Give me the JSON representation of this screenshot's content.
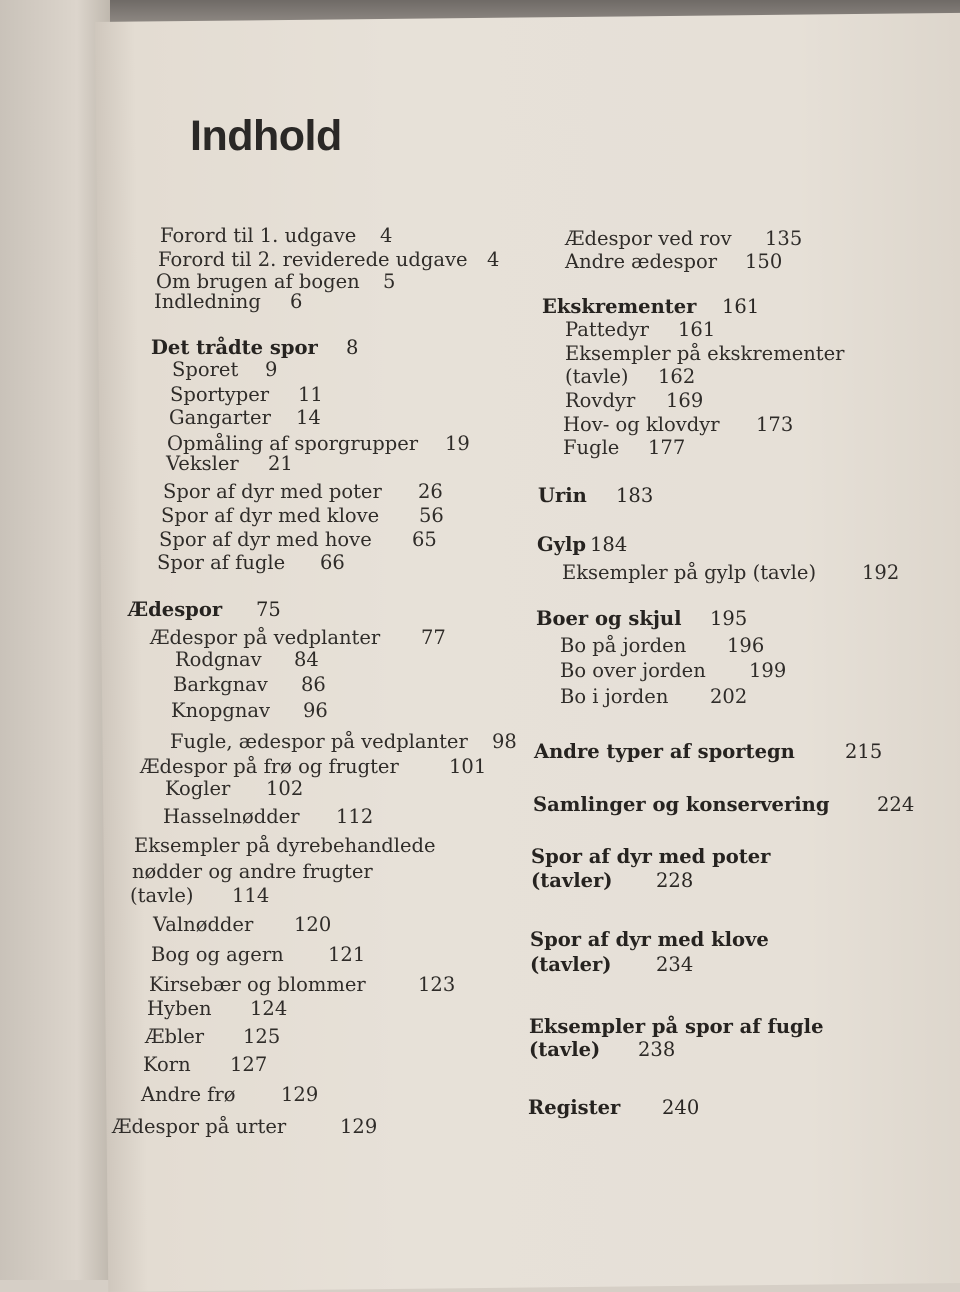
{
  "page_title": "Indhold",
  "left_column": [
    {
      "text": "Forord til 1. udgave",
      "page": "4",
      "bold": false
    },
    {
      "text": "Forord til 2. reviderede udgave",
      "page": "4",
      "bold": false
    },
    {
      "text": "Om brugen af bogen",
      "page": "5",
      "bold": false
    },
    {
      "text": "Indledning",
      "page": "6",
      "bold": false
    },
    {
      "text": "Det trådte spor",
      "page": "8",
      "bold": true
    },
    {
      "text": "Sporet",
      "page": "9",
      "bold": false
    },
    {
      "text": "Sportyper",
      "page": "11",
      "bold": false
    },
    {
      "text": "Gangarter",
      "page": "14",
      "bold": false
    },
    {
      "text": "Opmåling af sporgrupper",
      "page": "19",
      "bold": false
    },
    {
      "text": "Veksler",
      "page": "21",
      "bold": false
    },
    {
      "text": "Spor af dyr med poter",
      "page": "26",
      "bold": false
    },
    {
      "text": "Spor af dyr med klove",
      "page": "56",
      "bold": false
    },
    {
      "text": "Spor af dyr med hove",
      "page": "65",
      "bold": false
    },
    {
      "text": "Spor af fugle",
      "page": "66",
      "bold": false
    },
    {
      "text": "Ædespor",
      "page": "75",
      "bold": true
    },
    {
      "text": "Ædespor på vedplanter",
      "page": "77",
      "bold": false
    },
    {
      "text": "Rodgnav",
      "page": "84",
      "bold": false
    },
    {
      "text": "Barkgnav",
      "page": "86",
      "bold": false
    },
    {
      "text": "Knopgnav",
      "page": "96",
      "bold": false
    },
    {
      "text": "Fugle, ædespor på vedplanter",
      "page": "98",
      "bold": false
    },
    {
      "text": "Ædespor på frø og frugter",
      "page": "101",
      "bold": false
    },
    {
      "text": "Kogler",
      "page": "102",
      "bold": false
    },
    {
      "text": "Hasselnødder",
      "page": "112",
      "bold": false
    },
    {
      "text": "Eksempler på dyrebehandlede",
      "page": "",
      "bold": false
    },
    {
      "text": "nødder og andre frugter",
      "page": "",
      "bold": false
    },
    {
      "text": "(tavle)",
      "page": "114",
      "bold": false
    },
    {
      "text": "Valnødder",
      "page": "120",
      "bold": false
    },
    {
      "text": "Bog og agern",
      "page": "121",
      "bold": false
    },
    {
      "text": "Kirsebær og blommer",
      "page": "123",
      "bold": false
    },
    {
      "text": "Hyben",
      "page": "124",
      "bold": false
    },
    {
      "text": "Æbler",
      "page": "125",
      "bold": false
    },
    {
      "text": "Korn",
      "page": "127",
      "bold": false
    },
    {
      "text": "Andre frø",
      "page": "129",
      "bold": false
    },
    {
      "text": "Ædespor på urter",
      "page": "129",
      "bold": false
    }
  ],
  "right_column": [
    {
      "text": "Ædespor ved rov",
      "page": "135",
      "bold": false
    },
    {
      "text": "Andre ædespor",
      "page": "150",
      "bold": false
    },
    {
      "text": "Ekskrementer",
      "page": "161",
      "bold": true
    },
    {
      "text": "Pattedyr",
      "page": "161",
      "bold": false
    },
    {
      "text": "Eksempler på ekskrementer",
      "page": "",
      "bold": false
    },
    {
      "text": "(tavle)",
      "page": "162",
      "bold": false
    },
    {
      "text": "Rovdyr",
      "page": "169",
      "bold": false
    },
    {
      "text": "Hov- og klovdyr",
      "page": "173",
      "bold": false
    },
    {
      "text": "Fugle",
      "page": "177",
      "bold": false
    },
    {
      "text": "Urin",
      "page": "183",
      "bold": true
    },
    {
      "text": "Gylp",
      "page": "184",
      "bold": true
    },
    {
      "text": "Eksempler på gylp (tavle)",
      "page": "192",
      "bold": false
    },
    {
      "text": "Boer og skjul",
      "page": "195",
      "bold": true
    },
    {
      "text": "Bo på jorden",
      "page": "196",
      "bold": false
    },
    {
      "text": "Bo over jorden",
      "page": "199",
      "bold": false
    },
    {
      "text": "Bo i jorden",
      "page": "202",
      "bold": false
    },
    {
      "text": "Andre typer af sportegn",
      "page": "215",
      "bold": true
    },
    {
      "text": "Samlinger og konservering",
      "page": "224",
      "bold": true
    },
    {
      "text": "Spor af dyr med poter",
      "page": "",
      "bold": true
    },
    {
      "text": "(tavler)",
      "page": "228",
      "bold": true
    },
    {
      "text": "Spor af dyr med klove",
      "page": "",
      "bold": true
    },
    {
      "text": "(tavler)",
      "page": "234",
      "bold": true
    },
    {
      "text": "Eksempler på spor af fugle",
      "page": "",
      "bold": true
    },
    {
      "text": "(tavle)",
      "page": "238",
      "bold": true
    },
    {
      "text": "Register",
      "page": "240",
      "bold": true
    }
  ]
}
